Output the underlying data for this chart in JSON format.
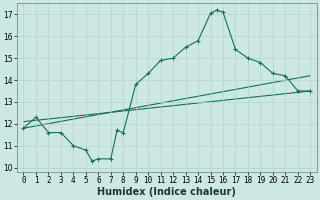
{
  "xlabel": "Humidex (Indice chaleur)",
  "xlim": [
    -0.5,
    23.5
  ],
  "ylim": [
    9.8,
    17.5
  ],
  "xticks": [
    0,
    1,
    2,
    3,
    4,
    5,
    6,
    7,
    8,
    9,
    10,
    11,
    12,
    13,
    14,
    15,
    16,
    17,
    18,
    19,
    20,
    21,
    22,
    23
  ],
  "yticks": [
    10,
    11,
    12,
    13,
    14,
    15,
    16,
    17
  ],
  "bg_color": "#cce8e4",
  "grid_color": "#b0d4cc",
  "line_color": "#1a6b5a",
  "curve1_x": [
    0,
    1,
    2,
    3,
    4,
    5,
    5.5,
    6,
    7,
    7.5,
    8,
    9,
    10,
    11,
    12,
    13,
    14,
    15,
    15.5,
    16,
    17,
    18,
    19,
    20,
    21,
    22,
    23
  ],
  "curve1_y": [
    11.8,
    12.3,
    11.6,
    11.6,
    11.0,
    10.8,
    10.3,
    10.4,
    10.4,
    11.7,
    11.6,
    13.8,
    14.3,
    14.9,
    15.0,
    15.5,
    15.8,
    17.05,
    17.2,
    17.1,
    15.4,
    15.0,
    14.8,
    14.3,
    14.2,
    13.5,
    13.5
  ],
  "trend1_x": [
    0,
    23
  ],
  "trend1_y": [
    11.8,
    14.2
  ],
  "trend2_x": [
    0,
    23
  ],
  "trend2_y": [
    12.1,
    13.5
  ],
  "tick_font_size": 5.5,
  "xlabel_font_size": 7.0
}
